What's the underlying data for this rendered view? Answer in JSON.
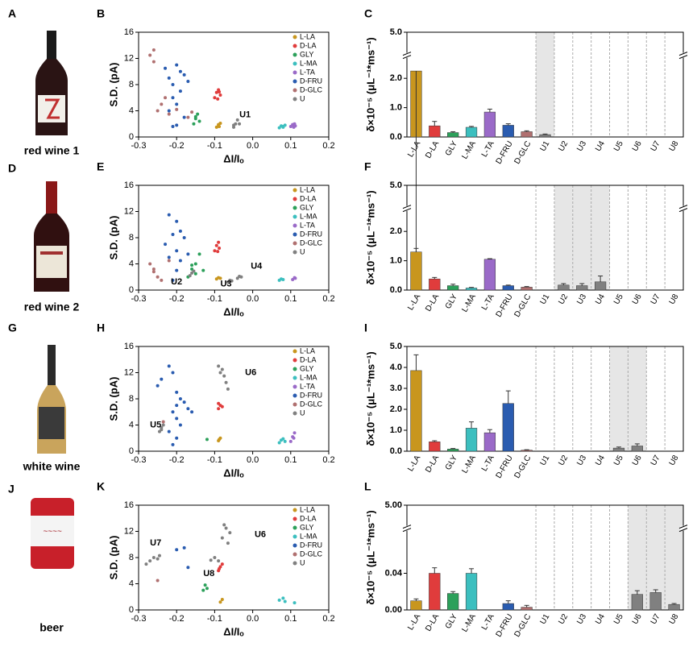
{
  "photos": [
    {
      "letter": "A",
      "caption": "red wine 1"
    },
    {
      "letter": "D",
      "caption": "red wine 2"
    },
    {
      "letter": "G",
      "caption": "white wine"
    },
    {
      "letter": "J",
      "caption": "beer"
    }
  ],
  "chart_data": [
    {
      "type": "scatter",
      "panel": "B",
      "xlabel": "ΔI/Iₒ",
      "ylabel": "S.D. (pA)",
      "xlim": [
        -0.3,
        0.2
      ],
      "xticks": [
        -0.3,
        -0.2,
        -0.1,
        {
          "value": 0,
          "label": "0.0"
        },
        0.1,
        0.2
      ],
      "ylim": [
        0,
        16
      ],
      "yticks": [
        0,
        4,
        8,
        12,
        16
      ],
      "series": [
        {
          "name": "L-LA",
          "color": "#c8961e",
          "x": [
            -0.095,
            -0.09,
            -0.085,
            -0.09,
            -0.088
          ],
          "y": [
            1.5,
            1.9,
            2.1,
            1.7,
            1.6
          ]
        },
        {
          "name": "D-LA",
          "color": "#e03c3c",
          "x": [
            -0.1,
            -0.095,
            -0.09,
            -0.085,
            -0.092,
            -0.088
          ],
          "y": [
            6,
            6.8,
            7.2,
            6.4,
            5.8,
            6.9
          ]
        },
        {
          "name": "GLY",
          "color": "#2ca05a",
          "x": [
            -0.155,
            -0.15,
            -0.145,
            -0.14,
            -0.15
          ],
          "y": [
            2,
            2.8,
            3.5,
            2.4,
            3.1
          ]
        },
        {
          "name": "L-MA",
          "color": "#3cbfbf",
          "x": [
            0.07,
            0.075,
            0.08,
            0.085,
            0.08
          ],
          "y": [
            1.4,
            1.7,
            1.5,
            1.8,
            1.6
          ]
        },
        {
          "name": "L-TA",
          "color": "#9a6ac8",
          "x": [
            0.1,
            0.105,
            0.11,
            0.112,
            0.108
          ],
          "y": [
            1.6,
            1.9,
            2,
            1.7,
            1.5
          ]
        },
        {
          "name": "D-FRU",
          "color": "#2a5cb0",
          "x": [
            -0.23,
            -0.22,
            -0.21,
            -0.2,
            -0.19,
            -0.18,
            -0.21,
            -0.2,
            -0.19,
            -0.22,
            -0.18,
            -0.2,
            -0.21,
            -0.17
          ],
          "y": [
            10.5,
            9,
            8,
            11,
            10,
            9.5,
            6,
            5,
            7,
            4,
            3,
            1.8,
            1.6,
            8.5
          ]
        },
        {
          "name": "D-GLC",
          "color": "#b07070",
          "x": [
            -0.27,
            -0.26,
            -0.25,
            -0.24,
            -0.22,
            -0.2,
            -0.17,
            -0.16,
            -0.26,
            -0.23
          ],
          "y": [
            12.5,
            13.3,
            4,
            5,
            3.5,
            4.2,
            3,
            3.8,
            11.5,
            6
          ]
        },
        {
          "name": "U",
          "color": "#808080",
          "x": [
            -0.05,
            -0.045,
            -0.04,
            -0.035,
            -0.05
          ],
          "y": [
            1.5,
            2,
            2.6,
            2,
            1.8
          ]
        }
      ],
      "annotations": [
        {
          "text": "U1",
          "x": -0.035,
          "y": 3.4
        }
      ]
    },
    {
      "type": "bar",
      "panel": "C",
      "ylabel": "δ×10⁻⁵ (μL⁻¹*ms⁻¹)",
      "categories": [
        "L-LA",
        "D-LA",
        "GLY",
        "L-MA",
        "L-TA",
        "D-FRU",
        "D-GLC",
        "U1",
        "U2",
        "U3",
        "U4",
        "U5",
        "U6",
        "U7",
        "U8"
      ],
      "values": [
        2.25,
        0.38,
        0.15,
        0.33,
        0.85,
        0.4,
        0.18,
        0.08,
        null,
        null,
        null,
        null,
        null,
        null,
        null
      ],
      "errors": [
        0.35,
        0.15,
        0.03,
        0.03,
        0.1,
        0.05,
        0.03,
        0.02,
        null,
        null,
        null,
        null,
        null,
        null,
        null
      ],
      "colors": [
        "#c8961e",
        "#e03c3c",
        "#2ca05a",
        "#3cbfbf",
        "#9a6ac8",
        "#2a5cb0",
        "#b07070",
        "#808080",
        "#808080",
        "#808080",
        "#808080",
        "#808080",
        "#808080",
        "#808080",
        "#808080"
      ],
      "ylim": [
        0,
        5
      ],
      "ybreak": [
        2.5,
        4.9
      ],
      "yticks": [
        {
          "value": 0,
          "label": "0.0"
        },
        {
          "value": 1,
          "label": "1.0"
        },
        {
          "value": 2,
          "label": "2.0"
        },
        {
          "value": 5,
          "label": "5.0"
        }
      ],
      "highlight": [
        7
      ]
    },
    {
      "type": "scatter",
      "panel": "E",
      "xlabel": "ΔI/Iₒ",
      "ylabel": "S.D. (pA)",
      "xlim": [
        -0.3,
        0.2
      ],
      "xticks": [
        -0.3,
        -0.2,
        -0.1,
        {
          "value": 0,
          "label": "0.0"
        },
        0.1,
        0.2
      ],
      "ylim": [
        0,
        16
      ],
      "yticks": [
        0,
        4,
        8,
        12,
        16
      ],
      "series": [
        {
          "name": "L-LA",
          "color": "#c8961e",
          "x": [
            -0.095,
            -0.09,
            -0.085
          ],
          "y": [
            1.7,
            1.9,
            1.8
          ]
        },
        {
          "name": "D-LA",
          "color": "#e03c3c",
          "x": [
            -0.1,
            -0.095,
            -0.09,
            -0.088,
            -0.092
          ],
          "y": [
            6,
            6.8,
            7.3,
            6.4,
            5.9
          ]
        },
        {
          "name": "GLY",
          "color": "#2ca05a",
          "x": [
            -0.17,
            -0.16,
            -0.15,
            -0.14,
            -0.15,
            -0.16,
            -0.13
          ],
          "y": [
            2,
            3.2,
            4,
            5.5,
            2.5,
            3.8,
            3
          ]
        },
        {
          "name": "L-MA",
          "color": "#3cbfbf",
          "x": [
            0.07,
            0.075,
            0.08
          ],
          "y": [
            1.5,
            1.7,
            1.6
          ]
        },
        {
          "name": "L-TA",
          "color": "#9a6ac8",
          "x": [
            0.105,
            0.11,
            0.112
          ],
          "y": [
            1.6,
            1.9,
            1.8
          ]
        },
        {
          "name": "D-FRU",
          "color": "#2a5cb0",
          "x": [
            -0.22,
            -0.2,
            -0.19,
            -0.21,
            -0.23,
            -0.18,
            -0.2,
            -0.22,
            -0.19,
            -0.2,
            -0.17,
            -0.21
          ],
          "y": [
            11.5,
            10.5,
            9,
            8.5,
            7,
            8,
            6,
            5,
            4.5,
            3,
            5.5,
            1.5
          ]
        },
        {
          "name": "D-GLC",
          "color": "#b07070",
          "x": [
            -0.27,
            -0.26,
            -0.25,
            -0.24,
            -0.22,
            -0.26
          ],
          "y": [
            4,
            3.2,
            2,
            1.5,
            4.5,
            2.8
          ]
        },
        {
          "name": "U",
          "color": "#808080",
          "x": [
            -0.165,
            -0.16,
            -0.155,
            -0.065,
            -0.06,
            -0.055,
            -0.04,
            -0.035,
            -0.03
          ],
          "y": [
            2.2,
            2.6,
            2.9,
            1.2,
            1.5,
            1.4,
            1.8,
            2.1,
            2
          ]
        }
      ],
      "annotations": [
        {
          "text": "U2",
          "x": -0.215,
          "y": 1.2
        },
        {
          "text": "U3",
          "x": -0.085,
          "y": 0.9
        },
        {
          "text": "U4",
          "x": -0.005,
          "y": 3.6
        }
      ]
    },
    {
      "type": "bar",
      "panel": "F",
      "ylabel": "δ×10⁻⁵ (μL⁻¹*ms⁻¹)",
      "categories": [
        "L-LA",
        "D-LA",
        "GLY",
        "L-MA",
        "L-TA",
        "D-FRU",
        "D-GLC",
        "U1",
        "U2",
        "U3",
        "U4",
        "U5",
        "U6",
        "U7",
        "U8"
      ],
      "values": [
        1.3,
        0.38,
        0.15,
        0.07,
        1.05,
        0.15,
        0.1,
        null,
        0.17,
        0.15,
        0.28,
        null,
        null,
        null,
        null
      ],
      "errors": [
        0.12,
        0.05,
        0.05,
        0.02,
        0.02,
        0.02,
        0.02,
        null,
        0.05,
        0.07,
        0.2,
        null,
        null,
        null,
        null
      ],
      "colors": [
        "#c8961e",
        "#e03c3c",
        "#2ca05a",
        "#3cbfbf",
        "#9a6ac8",
        "#2a5cb0",
        "#b07070",
        "#808080",
        "#808080",
        "#808080",
        "#808080",
        "#808080",
        "#808080",
        "#808080",
        "#808080"
      ],
      "ylim": [
        0,
        5
      ],
      "ybreak": [
        2.5,
        4.9
      ],
      "yticks": [
        {
          "value": 0,
          "label": "0.0"
        },
        {
          "value": 1,
          "label": "1.0"
        },
        {
          "value": 2,
          "label": "2.0"
        },
        {
          "value": 5,
          "label": "5.0"
        }
      ],
      "highlight": [
        8,
        9,
        10
      ]
    },
    {
      "type": "scatter",
      "panel": "H",
      "xlabel": "ΔI/Iₒ",
      "ylabel": "S.D. (pA)",
      "xlim": [
        -0.3,
        0.2
      ],
      "xticks": [
        -0.3,
        -0.2,
        -0.1,
        {
          "value": 0,
          "label": "0.0"
        },
        0.1,
        0.2
      ],
      "ylim": [
        0,
        16
      ],
      "yticks": [
        0,
        4,
        8,
        12,
        16
      ],
      "series": [
        {
          "name": "L-LA",
          "color": "#c8961e",
          "x": [
            -0.09,
            -0.085,
            -0.088
          ],
          "y": [
            1.6,
            2,
            1.8
          ]
        },
        {
          "name": "D-LA",
          "color": "#e03c3c",
          "x": [
            -0.09,
            -0.085,
            -0.08,
            -0.09
          ],
          "y": [
            6.5,
            7,
            6.8,
            7.3
          ]
        },
        {
          "name": "GLY",
          "color": "#2ca05a",
          "x": [
            -0.12
          ],
          "y": [
            1.8
          ]
        },
        {
          "name": "L-MA",
          "color": "#3cbfbf",
          "x": [
            0.07,
            0.075,
            0.08,
            0.085
          ],
          "y": [
            1.3,
            1.7,
            1.9,
            1.5
          ]
        },
        {
          "name": "L-TA",
          "color": "#9a6ac8",
          "x": [
            0.1,
            0.105,
            0.11,
            0.108
          ],
          "y": [
            1.5,
            2.2,
            2.8,
            2
          ]
        },
        {
          "name": "D-FRU",
          "color": "#2a5cb0",
          "x": [
            -0.25,
            -0.24,
            -0.22,
            -0.21,
            -0.2,
            -0.19,
            -0.2,
            -0.21,
            -0.2,
            -0.19,
            -0.18,
            -0.17,
            -0.22,
            -0.2,
            -0.21,
            -0.16
          ],
          "y": [
            10,
            11,
            13,
            12,
            9,
            8,
            7,
            6,
            5,
            4,
            7.5,
            6.5,
            3,
            2,
            1,
            6
          ]
        },
        {
          "name": "D-GLC",
          "color": "#b07070",
          "x": [
            -0.235
          ],
          "y": [
            4.5
          ]
        },
        {
          "name": "U",
          "color": "#808080",
          "x": [
            -0.245,
            -0.24,
            -0.235,
            -0.24,
            -0.09,
            -0.08,
            -0.075,
            -0.07,
            -0.085,
            -0.065
          ],
          "y": [
            3,
            3.6,
            4,
            3.3,
            13,
            12.5,
            11.5,
            10.5,
            12,
            9.5
          ]
        }
      ],
      "annotations": [
        {
          "text": "U5",
          "x": -0.27,
          "y": 4
        },
        {
          "text": "U6",
          "x": -0.02,
          "y": 12
        }
      ]
    },
    {
      "type": "bar",
      "panel": "I",
      "ylabel": "δ×10⁻⁵ (μL⁻¹*ms⁻¹)",
      "categories": [
        "L-LA",
        "D-LA",
        "GLY",
        "L-MA",
        "L-TA",
        "D-FRU",
        "D-GLC",
        "U1",
        "U2",
        "U3",
        "U4",
        "U5",
        "U6",
        "U7",
        "U8"
      ],
      "values": [
        3.85,
        0.45,
        0.1,
        1.1,
        0.88,
        2.28,
        0.05,
        null,
        null,
        null,
        null,
        0.15,
        0.25,
        null,
        null
      ],
      "errors": [
        0.75,
        0.05,
        0.03,
        0.3,
        0.15,
        0.6,
        0.02,
        null,
        null,
        null,
        null,
        0.05,
        0.1,
        null,
        null
      ],
      "colors": [
        "#c8961e",
        "#e03c3c",
        "#2ca05a",
        "#3cbfbf",
        "#9a6ac8",
        "#2a5cb0",
        "#b07070",
        "#808080",
        "#808080",
        "#808080",
        "#808080",
        "#808080",
        "#808080",
        "#808080",
        "#808080"
      ],
      "ylim": [
        0,
        5
      ],
      "yticks": [
        {
          "value": 0,
          "label": "0.0"
        },
        {
          "value": 1,
          "label": "1.0"
        },
        {
          "value": 2,
          "label": "2.0"
        },
        {
          "value": 3,
          "label": "3.0"
        },
        {
          "value": 4,
          "label": "4.0"
        },
        {
          "value": 5,
          "label": "5.0"
        }
      ],
      "highlight": [
        11,
        12
      ]
    },
    {
      "type": "scatter",
      "panel": "K",
      "xlabel": "ΔI/Iₒ",
      "ylabel": "S.D. (pA)",
      "xlim": [
        -0.3,
        0.2
      ],
      "xticks": [
        -0.3,
        -0.2,
        -0.1,
        {
          "value": 0,
          "label": "0.0"
        },
        0.1,
        0.2
      ],
      "ylim": [
        0,
        16
      ],
      "yticks": [
        0,
        4,
        8,
        12,
        16
      ],
      "series": [
        {
          "name": "L-LA",
          "color": "#c8961e",
          "x": [
            -0.085,
            -0.08
          ],
          "y": [
            1.2,
            1.6
          ]
        },
        {
          "name": "D-LA",
          "color": "#e03c3c",
          "x": [
            -0.09,
            -0.085,
            -0.08,
            -0.088
          ],
          "y": [
            6,
            6.6,
            7,
            6.3
          ]
        },
        {
          "name": "GLY",
          "color": "#2ca05a",
          "x": [
            -0.13,
            -0.125,
            -0.12
          ],
          "y": [
            3,
            3.8,
            3.3
          ]
        },
        {
          "name": "L-MA",
          "color": "#3cbfbf",
          "x": [
            0.07,
            0.08,
            0.085,
            0.11
          ],
          "y": [
            1.5,
            1.8,
            1.3,
            1.1
          ]
        },
        {
          "name": "D-FRU",
          "color": "#2a5cb0",
          "x": [
            -0.2,
            -0.18,
            -0.17
          ],
          "y": [
            9.2,
            9.5,
            6.5
          ]
        },
        {
          "name": "D-GLC",
          "color": "#b07070",
          "x": [
            -0.25
          ],
          "y": [
            4.5
          ]
        },
        {
          "name": "U",
          "color": "#808080",
          "x": [
            -0.28,
            -0.27,
            -0.26,
            -0.25,
            -0.245,
            -0.11,
            -0.1,
            -0.09,
            -0.08,
            -0.07,
            -0.06,
            -0.065,
            -0.075
          ],
          "y": [
            7,
            7.5,
            8,
            7.8,
            8.3,
            7.6,
            8,
            7.5,
            11,
            12.5,
            11.8,
            10.2,
            13
          ]
        }
      ],
      "annotations": [
        {
          "text": "U7",
          "x": -0.27,
          "y": 10.2
        },
        {
          "text": "U8",
          "x": -0.13,
          "y": 5.5
        },
        {
          "text": "U6",
          "x": 0.005,
          "y": 11.5
        }
      ]
    },
    {
      "type": "bar",
      "panel": "L",
      "ylabel": "δ×10⁻⁵ (μL⁻¹*ms⁻¹)",
      "categories": [
        "L-LA",
        "D-LA",
        "GLY",
        "L-MA",
        "L-TA",
        "D-FRU",
        "D-GLC",
        "U1",
        "U2",
        "U3",
        "U4",
        "U5",
        "U6",
        "U7",
        "U8"
      ],
      "values": [
        0.01,
        0.04,
        0.018,
        0.04,
        null,
        0.007,
        0.003,
        null,
        null,
        null,
        null,
        null,
        0.017,
        0.019,
        0.006
      ],
      "errors": [
        0.002,
        0.006,
        0.002,
        0.005,
        null,
        0.003,
        0.002,
        null,
        null,
        null,
        null,
        null,
        0.004,
        0.003,
        0.001
      ],
      "colors": [
        "#c8961e",
        "#e03c3c",
        "#2ca05a",
        "#3cbfbf",
        "#9a6ac8",
        "#2a5cb0",
        "#b07070",
        "#808080",
        "#808080",
        "#808080",
        "#808080",
        "#808080",
        "#808080",
        "#808080",
        "#808080"
      ],
      "ylim": [
        0,
        5
      ],
      "ybreak": [
        0.08,
        4.9
      ],
      "yticks": [
        {
          "value": 0,
          "label": "0.00"
        },
        {
          "value": 0.04,
          "label": "0.04"
        },
        {
          "value": 5,
          "label": "5.00"
        }
      ],
      "highlight": [
        12,
        13,
        14
      ]
    }
  ]
}
